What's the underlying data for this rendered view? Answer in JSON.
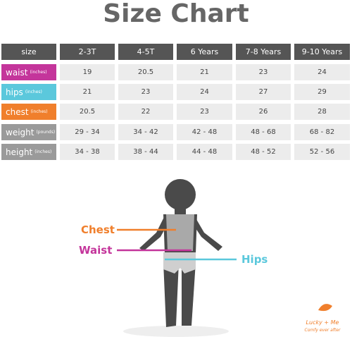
{
  "title": "Size Chart",
  "table": {
    "header": [
      "size",
      "2-3T",
      "4-5T",
      "6 Years",
      "7-8 Years",
      "9-10 Years"
    ],
    "rows": [
      {
        "label": "waist",
        "unit": "(inches)",
        "cells": [
          "19",
          "20.5",
          "21",
          "23",
          "24"
        ]
      },
      {
        "label": "hips",
        "unit": "(inches)",
        "cells": [
          "21",
          "23",
          "24",
          "27",
          "29"
        ]
      },
      {
        "label": "chest",
        "unit": "(inches)",
        "cells": [
          "20.5",
          "22",
          "23",
          "26",
          "28"
        ]
      },
      {
        "label": "weight",
        "unit": "(pounds)",
        "cells": [
          "29 - 34",
          "34 - 42",
          "42 - 48",
          "48 - 68",
          "68 - 82"
        ]
      },
      {
        "label": "height",
        "unit": "(inches)",
        "cells": [
          "34 - 38",
          "38 - 44",
          "44 - 48",
          "48 - 52",
          "52 - 56"
        ]
      }
    ]
  },
  "figure": {
    "labels": [
      "Chest",
      "Waist",
      "Hips"
    ]
  },
  "logo": {
    "name": "Lucky + Me",
    "tagline": "Comfy ever after"
  }
}
